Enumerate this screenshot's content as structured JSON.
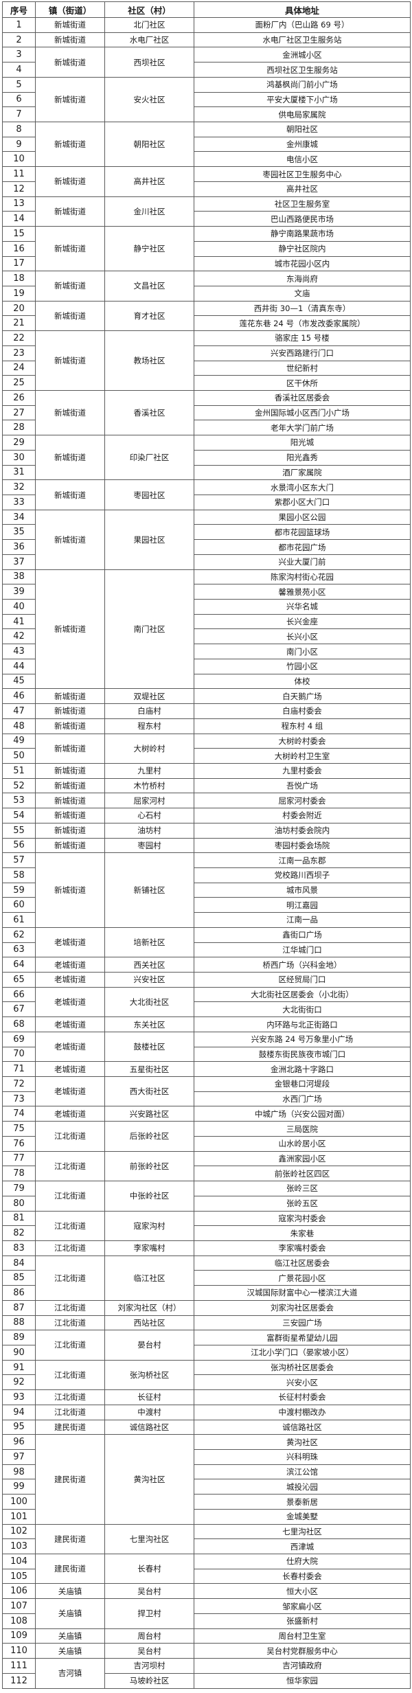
{
  "header": {
    "no": "序号",
    "town": "镇（街道）",
    "community": "社区（村）",
    "address": "具体地址"
  },
  "groups": [
    {
      "town": "新城街道",
      "communities": [
        {
          "name": "北门社区",
          "addresses": [
            [
              "1",
              "面粉厂内（巴山路 69 号）"
            ]
          ]
        }
      ]
    },
    {
      "town": "新城街道",
      "communities": [
        {
          "name": "水电厂社区",
          "addresses": [
            [
              "2",
              "水电厂社区卫生服务站"
            ]
          ]
        }
      ]
    },
    {
      "town": "新城街道",
      "communities": [
        {
          "name": "西坝社区",
          "addresses": [
            [
              "3",
              "金洲城小区"
            ],
            [
              "4",
              "西坝社区卫生服务站"
            ]
          ]
        }
      ]
    },
    {
      "town": "新城街道",
      "communities": [
        {
          "name": "安火社区",
          "addresses": [
            [
              "5",
              "鸿基枫尚门前小广场"
            ],
            [
              "6",
              "平安大厦楼下小广场"
            ],
            [
              "7",
              "供电局家属院"
            ]
          ]
        }
      ]
    },
    {
      "town": "新城街道",
      "communities": [
        {
          "name": "朝阳社区",
          "addresses": [
            [
              "8",
              "朝阳社区"
            ],
            [
              "9",
              "金州康城"
            ],
            [
              "10",
              "电信小区"
            ]
          ]
        }
      ]
    },
    {
      "town": "新城街道",
      "communities": [
        {
          "name": "高井社区",
          "addresses": [
            [
              "11",
              "枣园社区卫生服务中心"
            ],
            [
              "12",
              "高井社区"
            ]
          ]
        }
      ]
    },
    {
      "town": "新城街道",
      "communities": [
        {
          "name": "金川社区",
          "addresses": [
            [
              "13",
              "社区卫生服务室"
            ],
            [
              "14",
              "巴山西路便民市场"
            ]
          ]
        }
      ]
    },
    {
      "town": "新城街道",
      "communities": [
        {
          "name": "静宁社区",
          "addresses": [
            [
              "15",
              "静宁南路果蔬市场"
            ],
            [
              "16",
              "静宁社区院内"
            ],
            [
              "17",
              "城市花园小区内"
            ]
          ]
        }
      ]
    },
    {
      "town": "新城街道",
      "communities": [
        {
          "name": "文昌社区",
          "addresses": [
            [
              "18",
              "东海尚府"
            ],
            [
              "19",
              "文庙"
            ]
          ]
        }
      ]
    },
    {
      "town": "新城街道",
      "communities": [
        {
          "name": "育才社区",
          "addresses": [
            [
              "20",
              "西井街 30—1（清真东寺）"
            ],
            [
              "21",
              "莲花东巷 24 号（市发改委家属院）"
            ]
          ]
        }
      ]
    },
    {
      "town": "新城街道",
      "communities": [
        {
          "name": "教场社区",
          "addresses": [
            [
              "22",
              "骆家庄 15 号楼"
            ],
            [
              "23",
              "兴安西路建行门口"
            ],
            [
              "24",
              "世纪新村"
            ],
            [
              "25",
              "区干休所"
            ]
          ]
        }
      ]
    },
    {
      "town": "新城街道",
      "communities": [
        {
          "name": "香溪社区",
          "addresses": [
            [
              "26",
              "香溪社区居委会"
            ],
            [
              "27",
              "金州国际城小区西门小广场"
            ],
            [
              "28",
              "老年大学门前广场"
            ]
          ]
        }
      ]
    },
    {
      "town": "新城街道",
      "communities": [
        {
          "name": "印染厂社区",
          "addresses": [
            [
              "29",
              "阳光城"
            ],
            [
              "30",
              "阳光鑫秀"
            ],
            [
              "31",
              "酒厂家属院"
            ]
          ]
        }
      ]
    },
    {
      "town": "新城街道",
      "communities": [
        {
          "name": "枣园社区",
          "addresses": [
            [
              "32",
              "水景湾小区东大门"
            ],
            [
              "33",
              "紫郡小区大门口"
            ]
          ]
        }
      ]
    },
    {
      "town": "新城街道",
      "communities": [
        {
          "name": "果园社区",
          "addresses": [
            [
              "34",
              "果园小区公园"
            ],
            [
              "35",
              "都市花园篮球场"
            ],
            [
              "36",
              "都市花园广场"
            ],
            [
              "37",
              "兴业大厦门前"
            ]
          ]
        }
      ]
    },
    {
      "town": "新城街道",
      "communities": [
        {
          "name": "南门社区",
          "addresses": [
            [
              "38",
              "陈家沟村街心花园"
            ],
            [
              "39",
              "馨雅景苑小区"
            ],
            [
              "40",
              "兴华名城"
            ],
            [
              "41",
              "长兴金座"
            ],
            [
              "42",
              "长兴小区"
            ],
            [
              "43",
              "南门小区"
            ],
            [
              "44",
              "竹园小区"
            ],
            [
              "45",
              "体校"
            ]
          ]
        }
      ]
    },
    {
      "town": "新城街道",
      "communities": [
        {
          "name": "双堤社区",
          "addresses": [
            [
              "46",
              "白天鹅广场"
            ]
          ]
        }
      ]
    },
    {
      "town": "新城街道",
      "communities": [
        {
          "name": "白庙村",
          "addresses": [
            [
              "47",
              "白庙村委会"
            ]
          ]
        }
      ]
    },
    {
      "town": "新城街道",
      "communities": [
        {
          "name": "程东村",
          "addresses": [
            [
              "48",
              "程东村 4 组"
            ]
          ]
        }
      ]
    },
    {
      "town": "新城街道",
      "communities": [
        {
          "name": "大树岭村",
          "addresses": [
            [
              "49",
              "大树岭村委会"
            ],
            [
              "50",
              "大树岭村卫生室"
            ]
          ]
        }
      ]
    },
    {
      "town": "新城街道",
      "communities": [
        {
          "name": "九里村",
          "addresses": [
            [
              "51",
              "九里村委会"
            ]
          ]
        }
      ]
    },
    {
      "town": "新城街道",
      "communities": [
        {
          "name": "木竹桥村",
          "addresses": [
            [
              "52",
              "吾悦广场"
            ]
          ]
        }
      ]
    },
    {
      "town": "新城街道",
      "communities": [
        {
          "name": "屈家河村",
          "addresses": [
            [
              "53",
              "屈家河村委会"
            ]
          ]
        }
      ]
    },
    {
      "town": "新城街道",
      "communities": [
        {
          "name": "心石村",
          "addresses": [
            [
              "54",
              "村委会附近"
            ]
          ]
        }
      ]
    },
    {
      "town": "新城街道",
      "communities": [
        {
          "name": "油坊村",
          "addresses": [
            [
              "55",
              "油坊村委会院内"
            ]
          ]
        }
      ]
    },
    {
      "town": "新城街道",
      "communities": [
        {
          "name": "枣园村",
          "addresses": [
            [
              "56",
              "枣园村委会场院"
            ]
          ]
        }
      ]
    },
    {
      "town": "新城街道",
      "communities": [
        {
          "name": "新铺社区",
          "addresses": [
            [
              "57",
              "江南一品东郡"
            ],
            [
              "58",
              "党校路川西坝子"
            ],
            [
              "59",
              "城市风景"
            ],
            [
              "60",
              "明江嘉园"
            ],
            [
              "61",
              "江南一品"
            ]
          ]
        }
      ]
    },
    {
      "town": "老城街道",
      "communities": [
        {
          "name": "培新社区",
          "addresses": [
            [
              "62",
              "鑫街口广场"
            ],
            [
              "63",
              "江华城门口"
            ]
          ]
        }
      ]
    },
    {
      "town": "老城街道",
      "communities": [
        {
          "name": "西关社区",
          "addresses": [
            [
              "64",
              "桥西广场（兴科金地）"
            ]
          ]
        }
      ]
    },
    {
      "town": "老城街道",
      "communities": [
        {
          "name": "兴安社区",
          "addresses": [
            [
              "65",
              "区经贸局门口"
            ]
          ]
        }
      ]
    },
    {
      "town": "老城街道",
      "communities": [
        {
          "name": "大北街社区",
          "addresses": [
            [
              "66",
              "大北街社区居委会（小北街）"
            ],
            [
              "67",
              "大北街街口"
            ]
          ]
        }
      ]
    },
    {
      "town": "老城街道",
      "communities": [
        {
          "name": "东关社区",
          "addresses": [
            [
              "68",
              "内环路与北正街路口"
            ]
          ]
        }
      ]
    },
    {
      "town": "老城街道",
      "communities": [
        {
          "name": "鼓楼社区",
          "addresses": [
            [
              "69",
              "兴安东路 24 号万象里小广场"
            ],
            [
              "70",
              "鼓楼东街民族夜市城门口"
            ]
          ]
        }
      ]
    },
    {
      "town": "老城街道",
      "communities": [
        {
          "name": "五星街社区",
          "addresses": [
            [
              "71",
              "金洲北路十字路口"
            ]
          ]
        }
      ]
    },
    {
      "town": "老城街道",
      "communities": [
        {
          "name": "西大街社区",
          "addresses": [
            [
              "72",
              "金银巷口河堤段"
            ],
            [
              "73",
              "水西门广场"
            ]
          ]
        }
      ]
    },
    {
      "town": "老城街道",
      "communities": [
        {
          "name": "兴安路社区",
          "addresses": [
            [
              "74",
              "中城广场（兴安公园对面）"
            ]
          ]
        }
      ]
    },
    {
      "town": "江北街道",
      "communities": [
        {
          "name": "后张岭社区",
          "addresses": [
            [
              "75",
              "三局医院"
            ],
            [
              "76",
              "山水岭居小区"
            ]
          ]
        }
      ]
    },
    {
      "town": "江北街道",
      "communities": [
        {
          "name": "前张岭社区",
          "addresses": [
            [
              "77",
              "鑫洲家园小区"
            ],
            [
              "78",
              "前张岭社区四区"
            ]
          ]
        }
      ]
    },
    {
      "town": "江北街道",
      "communities": [
        {
          "name": "中张岭社区",
          "addresses": [
            [
              "79",
              "张岭三区"
            ],
            [
              "80",
              "张岭五区"
            ]
          ]
        }
      ]
    },
    {
      "town": "江北街道",
      "communities": [
        {
          "name": "寇家沟村",
          "addresses": [
            [
              "81",
              "寇家沟村委会"
            ],
            [
              "82",
              "朱家巷"
            ]
          ]
        }
      ]
    },
    {
      "town": "江北街道",
      "communities": [
        {
          "name": "李家嘴村",
          "addresses": [
            [
              "83",
              "李家嘴村委会"
            ]
          ]
        }
      ]
    },
    {
      "town": "江北街道",
      "communities": [
        {
          "name": "临江社区",
          "addresses": [
            [
              "84",
              "临江社区居委会"
            ],
            [
              "85",
              "广景花园小区"
            ],
            [
              "86",
              "汉城国际财富中心一楼滨江大道"
            ]
          ]
        }
      ]
    },
    {
      "town": "江北街道",
      "communities": [
        {
          "name": "刘家沟社区（村）",
          "addresses": [
            [
              "87",
              "刘家沟社区居委会"
            ]
          ]
        }
      ]
    },
    {
      "town": "江北街道",
      "communities": [
        {
          "name": "西站社区",
          "addresses": [
            [
              "88",
              "三安园广场"
            ]
          ]
        }
      ]
    },
    {
      "town": "江北街道",
      "communities": [
        {
          "name": "晏台村",
          "addresses": [
            [
              "89",
              "富群街星希望幼儿园"
            ],
            [
              "90",
              "江北小学门口（晏家坡小区）"
            ]
          ]
        }
      ]
    },
    {
      "town": "江北街道",
      "communities": [
        {
          "name": "张沟桥社区",
          "addresses": [
            [
              "91",
              "张沟桥社区居委会"
            ],
            [
              "92",
              "兴安小区"
            ]
          ]
        }
      ]
    },
    {
      "town": "江北街道",
      "communities": [
        {
          "name": "长征村",
          "addresses": [
            [
              "93",
              "长征村村委会"
            ]
          ]
        }
      ]
    },
    {
      "town": "江北街道",
      "communities": [
        {
          "name": "中渡村",
          "addresses": [
            [
              "94",
              "中渡村棚改办"
            ]
          ]
        }
      ]
    },
    {
      "town": "建民街道",
      "communities": [
        {
          "name": "诚信路社区",
          "addresses": [
            [
              "95",
              "诚信路社区"
            ]
          ]
        }
      ]
    },
    {
      "town": "建民街道",
      "communities": [
        {
          "name": "黄沟社区",
          "addresses": [
            [
              "96",
              "黄沟社区"
            ],
            [
              "97",
              "兴科明珠"
            ],
            [
              "98",
              "滨江公馆"
            ],
            [
              "99",
              "城投沁园"
            ],
            [
              "100",
              "景泰新居"
            ],
            [
              "101",
              "金城美墅"
            ]
          ]
        }
      ]
    },
    {
      "town": "建民街道",
      "communities": [
        {
          "name": "七里沟社区",
          "addresses": [
            [
              "102",
              "七里沟社区"
            ],
            [
              "103",
              "西津城"
            ]
          ]
        }
      ]
    },
    {
      "town": "建民街道",
      "communities": [
        {
          "name": "长春村",
          "addresses": [
            [
              "104",
              "仕府大院"
            ],
            [
              "105",
              "长春村委会"
            ]
          ]
        }
      ]
    },
    {
      "town": "关庙镇",
      "communities": [
        {
          "name": "吴台村",
          "addresses": [
            [
              "106",
              "恒大小区"
            ]
          ]
        }
      ]
    },
    {
      "town": "关庙镇",
      "communities": [
        {
          "name": "捍卫村",
          "addresses": [
            [
              "107",
              "邹家扁小区"
            ],
            [
              "108",
              "张盛新村"
            ]
          ]
        }
      ]
    },
    {
      "town": "关庙镇",
      "communities": [
        {
          "name": "周台村",
          "addresses": [
            [
              "109",
              "周台村卫生室"
            ]
          ]
        }
      ]
    },
    {
      "town": "关庙镇",
      "communities": [
        {
          "name": "吴台村",
          "addresses": [
            [
              "110",
              "吴台村党群服务中心"
            ]
          ]
        }
      ]
    },
    {
      "town": "吉河镇",
      "communities": [
        {
          "name": "吉河坝村",
          "addresses": [
            [
              "111",
              "吉河镇政府"
            ]
          ]
        },
        {
          "name": "马坡岭社区",
          "addresses": [
            [
              "112",
              "恒华家园"
            ]
          ]
        }
      ]
    }
  ]
}
